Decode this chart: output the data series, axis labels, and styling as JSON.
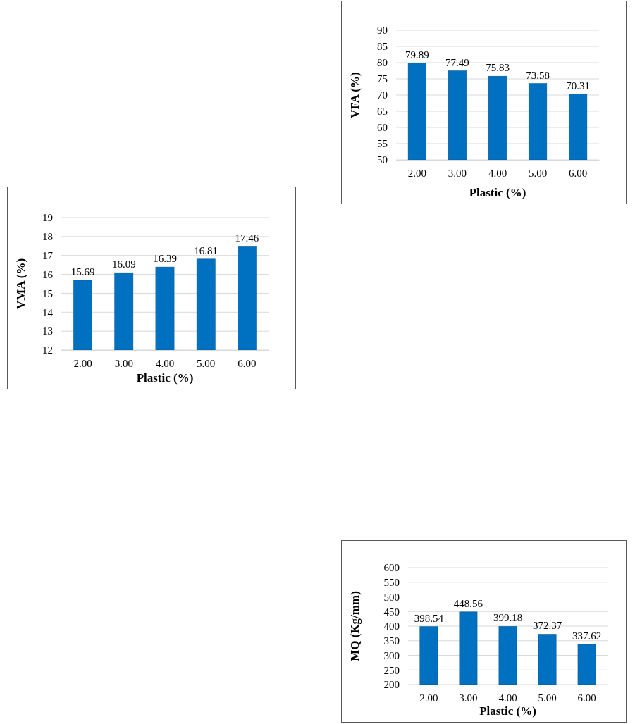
{
  "chart_data": [
    {
      "type": "bar",
      "xlabel": "Plastic (%)",
      "ylabel": "VFA (%)",
      "categories": [
        "2.00",
        "3.00",
        "4.00",
        "5.00",
        "6.00"
      ],
      "values": [
        79.89,
        77.49,
        75.83,
        73.58,
        70.31
      ],
      "color": "#0070c0",
      "ylim": [
        50,
        90
      ],
      "yticks": [
        50,
        55,
        60,
        65,
        70,
        75,
        80,
        85,
        90
      ],
      "grid": "y",
      "data_labels": true
    },
    {
      "type": "bar",
      "xlabel": "Plastic (%)",
      "ylabel": "VMA (%)",
      "categories": [
        "2.00",
        "3.00",
        "4.00",
        "5.00",
        "6.00"
      ],
      "values": [
        15.69,
        16.09,
        16.39,
        16.81,
        17.46
      ],
      "color": "#0070c0",
      "ylim": [
        12,
        19
      ],
      "yticks": [
        12,
        13,
        14,
        15,
        16,
        17,
        18,
        19
      ],
      "grid": "y",
      "data_labels": true
    },
    {
      "type": "bar",
      "xlabel": "Plastic (%)",
      "ylabel": "MQ (Kg/mm)",
      "categories": [
        "2.00",
        "3.00",
        "4.00",
        "5.00",
        "6.00"
      ],
      "values": [
        398.54,
        448.56,
        399.18,
        372.37,
        337.62
      ],
      "color": "#0070c0",
      "ylim": [
        200,
        600
      ],
      "yticks": [
        200,
        250,
        300,
        350,
        400,
        450,
        500,
        550,
        600
      ],
      "grid": "y",
      "data_labels": true
    }
  ]
}
